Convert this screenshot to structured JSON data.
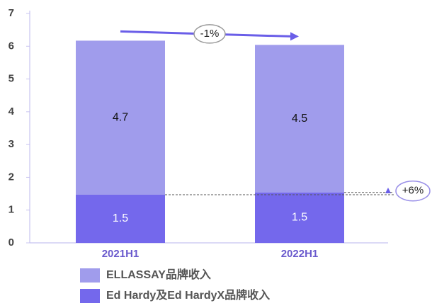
{
  "chart_data": {
    "type": "stacked_bar",
    "categories": [
      "2021H1",
      "2022H1"
    ],
    "series": [
      {
        "name": "Ed Hardy及Ed HardyX品牌收入",
        "color": "#7468ec",
        "values": [
          1.47,
          1.54
        ],
        "value_labels": [
          "1.5",
          "1.5"
        ]
      },
      {
        "name": "ELLASSAY品牌收入",
        "color": "#a09cec",
        "values": [
          4.7,
          4.5
        ],
        "value_labels": [
          "4.7",
          "4.5"
        ]
      }
    ],
    "ylim": [
      0,
      7
    ],
    "yticks": [
      0,
      1,
      2,
      3,
      4,
      5,
      6,
      7
    ],
    "annotations": [
      "-1%",
      "+6%"
    ]
  }
}
